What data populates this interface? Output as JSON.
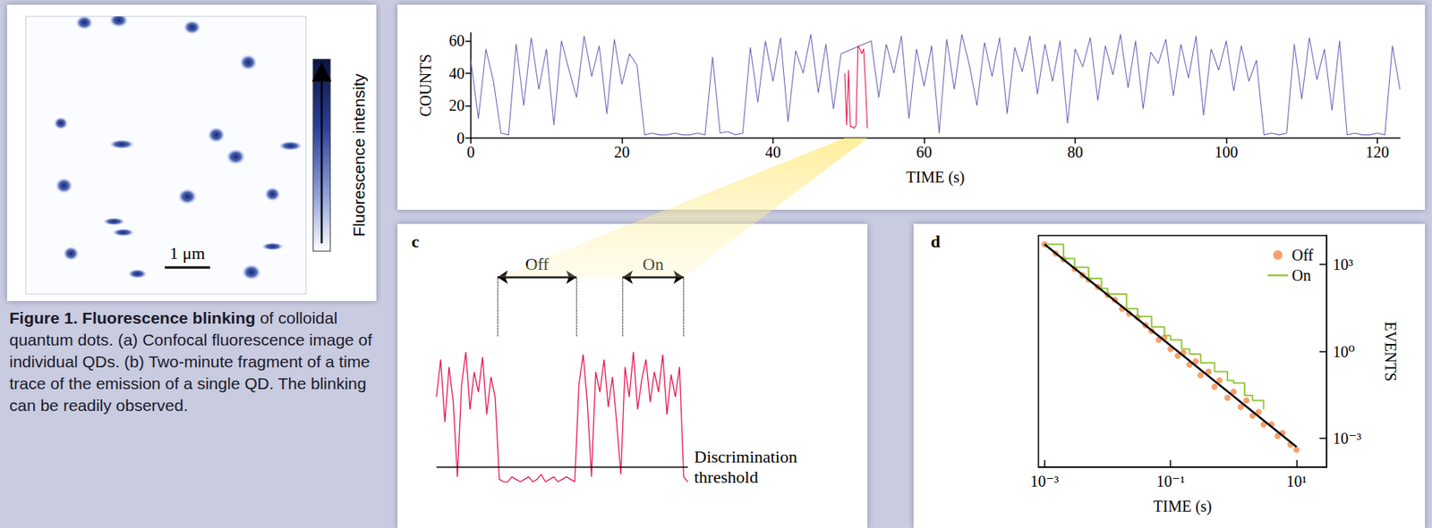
{
  "caption": {
    "title": "Figure 1. Fluorescence blinking",
    "text": "of colloidal quantum dots. (a) Confocal fluorescence image of individual QDs. (b) Two-minute fragment of a time trace of the emission of a single QD. The blinking can be readily observed."
  },
  "image_panel": {
    "colorbar_label": "Fluorescence intensity",
    "scale_bar": "1 μm"
  },
  "chart_data": [
    {
      "type": "line",
      "xlabel": "TIME (s)",
      "ylabel": "COUNTS",
      "xlim": [
        0,
        123
      ],
      "ylim": [
        0,
        65
      ],
      "xticks": [
        0,
        20,
        40,
        60,
        80,
        100,
        120
      ],
      "yticks": [
        0,
        20,
        40,
        60
      ],
      "series": [
        {
          "color": "#7068b8",
          "x": [
            0,
            1,
            2,
            3,
            4,
            5,
            6,
            7,
            8,
            9,
            10,
            11,
            12,
            13,
            14,
            15,
            16,
            17,
            18,
            19,
            20,
            21,
            22,
            23,
            24,
            25,
            26,
            27,
            28,
            29,
            30,
            31,
            32,
            33,
            34,
            35,
            36,
            37,
            38,
            39,
            40,
            41,
            42,
            43,
            44,
            45,
            46,
            47,
            48,
            49,
            53,
            54,
            55,
            56,
            57,
            58,
            59,
            60,
            61,
            62,
            63,
            64,
            65,
            66,
            67,
            68,
            69,
            70,
            71,
            72,
            73,
            74,
            75,
            76,
            77,
            78,
            79,
            80,
            81,
            82,
            83,
            84,
            85,
            86,
            87,
            88,
            89,
            90,
            91,
            92,
            93,
            94,
            95,
            96,
            97,
            98,
            99,
            100,
            101,
            102,
            103,
            104,
            105,
            106,
            107,
            108,
            109,
            110,
            111,
            112,
            113,
            114,
            115,
            116,
            117,
            118,
            119,
            120,
            121,
            122,
            123
          ],
          "values": [
            48,
            12,
            55,
            35,
            3,
            2,
            58,
            20,
            62,
            30,
            55,
            8,
            60,
            42,
            25,
            63,
            38,
            57,
            15,
            61,
            33,
            52,
            45,
            2,
            3,
            2,
            2,
            3,
            2,
            2,
            3,
            2,
            50,
            3,
            4,
            2,
            3,
            56,
            22,
            60,
            35,
            62,
            10,
            54,
            40,
            64,
            28,
            58,
            18,
            52,
            60,
            25,
            58,
            40,
            63,
            12,
            55,
            32,
            57,
            3,
            61,
            30,
            64,
            45,
            20,
            59,
            38,
            62,
            15,
            56,
            41,
            63,
            27,
            58,
            35,
            60,
            9,
            55,
            44,
            62,
            23,
            57,
            39,
            64,
            31,
            60,
            18,
            53,
            46,
            61,
            26,
            58,
            37,
            63,
            14,
            55,
            42,
            60,
            29,
            57,
            35,
            48,
            2,
            3,
            2,
            3,
            58,
            24,
            62,
            36,
            55,
            17,
            60,
            2,
            3,
            2,
            2,
            3,
            2,
            57,
            30
          ]
        },
        {
          "color": "#e5164f",
          "x": [
            49.5,
            49.75,
            50,
            50.25,
            50.5,
            50.75,
            51,
            51.25,
            51.5,
            51.75,
            52,
            52.25,
            52.5
          ],
          "values": [
            40,
            8,
            42,
            7,
            7,
            6,
            8,
            57,
            55,
            52,
            55,
            33,
            6
          ]
        }
      ]
    },
    {
      "type": "line",
      "panel": "c",
      "tick_labels": false,
      "xlim": [
        49.5,
        52.5
      ],
      "ylim": [
        0,
        100
      ],
      "color": "#e5164f",
      "x": [
        49.5,
        49.55,
        49.6,
        49.65,
        49.7,
        49.75,
        49.8,
        49.85,
        49.9,
        49.95,
        50,
        50.05,
        50.1,
        50.15,
        50.2,
        50.25,
        50.3,
        50.35,
        50.4,
        50.45,
        50.5,
        50.55,
        50.6,
        50.65,
        50.7,
        50.75,
        50.8,
        50.85,
        50.9,
        50.95,
        51,
        51.05,
        51.1,
        51.15,
        51.2,
        51.25,
        51.3,
        51.35,
        51.4,
        51.45,
        51.5,
        51.55,
        51.6,
        51.65,
        51.7,
        51.75,
        51.8,
        51.85,
        51.9,
        51.95,
        52,
        52.05,
        52.1,
        52.15,
        52.2,
        52.25,
        52.3,
        52.35,
        52.4,
        52.45,
        52.5
      ],
      "values": [
        40,
        55,
        30,
        52,
        38,
        8,
        45,
        58,
        35,
        50,
        42,
        56,
        33,
        48,
        40,
        7,
        6,
        6,
        8,
        7,
        6,
        7,
        8,
        6,
        7,
        9,
        6,
        7,
        8,
        6,
        7,
        8,
        7,
        6,
        45,
        57,
        38,
        8,
        50,
        42,
        55,
        36,
        48,
        30,
        9,
        52,
        40,
        58,
        35,
        47,
        55,
        38,
        50,
        42,
        57,
        33,
        49,
        40,
        52,
        8,
        6
      ],
      "threshold": {
        "value": 12,
        "label": "Discrimination threshold"
      },
      "annotations": [
        {
          "label": "Off",
          "x": [
            50.23,
            51.17
          ]
        },
        {
          "label": "On",
          "x": [
            51.72,
            52.45
          ]
        }
      ]
    },
    {
      "type": "scatter",
      "panel": "d",
      "log": true,
      "xlabel": "TIME (s)",
      "ylabel": "EVENTS",
      "xlim": [
        0.0008,
        30
      ],
      "ylim": [
        0.0001,
        10000
      ],
      "xticks": [
        {
          "value": 0.001,
          "label": "10⁻³"
        },
        {
          "value": 0.1,
          "label": "10⁻¹"
        },
        {
          "value": 10,
          "label": "10¹"
        }
      ],
      "yticks": [
        {
          "value": 0.001,
          "label": "10⁻³"
        },
        {
          "value": 1,
          "label": "10⁰"
        },
        {
          "value": 1000,
          "label": "10³"
        }
      ],
      "legend": "upper right",
      "series": [
        {
          "name": "Off",
          "type": "scatter",
          "marker": "circle",
          "color": "#f4894a",
          "x": [
            0.001,
            0.0015,
            0.002,
            0.003,
            0.004,
            0.005,
            0.007,
            0.01,
            0.013,
            0.017,
            0.022,
            0.03,
            0.04,
            0.05,
            0.065,
            0.08,
            0.1,
            0.13,
            0.16,
            0.2,
            0.25,
            0.3,
            0.4,
            0.5,
            0.6,
            0.8,
            1,
            1.3,
            1.6,
            2,
            2.5,
            3,
            4,
            5,
            6,
            8,
            10
          ],
          "values": [
            5000,
            2400,
            1500,
            700,
            430,
            300,
            170,
            90,
            60,
            30,
            20,
            15,
            8,
            5,
            2.5,
            3,
            1.2,
            0.7,
            0.9,
            0.35,
            0.45,
            0.15,
            0.2,
            0.06,
            0.1,
            0.025,
            0.04,
            0.012,
            0.02,
            0.006,
            0.008,
            0.003,
            0.003,
            0.0012,
            0.0015,
            0.0006,
            0.0004
          ]
        },
        {
          "name": "On",
          "type": "line",
          "line_style": "step",
          "color": "#95c93d",
          "x": [
            0.001,
            0.002,
            0.003,
            0.005,
            0.008,
            0.01,
            0.02,
            0.03,
            0.05,
            0.08,
            0.1,
            0.15,
            0.2,
            0.3,
            0.5,
            0.8,
            1,
            1.5,
            2,
            3
          ],
          "values": [
            5000,
            1600,
            800,
            330,
            150,
            95,
            30,
            16,
            7,
            3.5,
            2.5,
            1.2,
            0.8,
            0.4,
            0.2,
            0.1,
            0.08,
            0.03,
            0.02,
            0.01
          ]
        },
        {
          "type": "line",
          "line_style": "solid",
          "color": "#000000",
          "x": [
            0.001,
            10
          ],
          "values": [
            5000,
            0.0005
          ]
        }
      ]
    }
  ]
}
